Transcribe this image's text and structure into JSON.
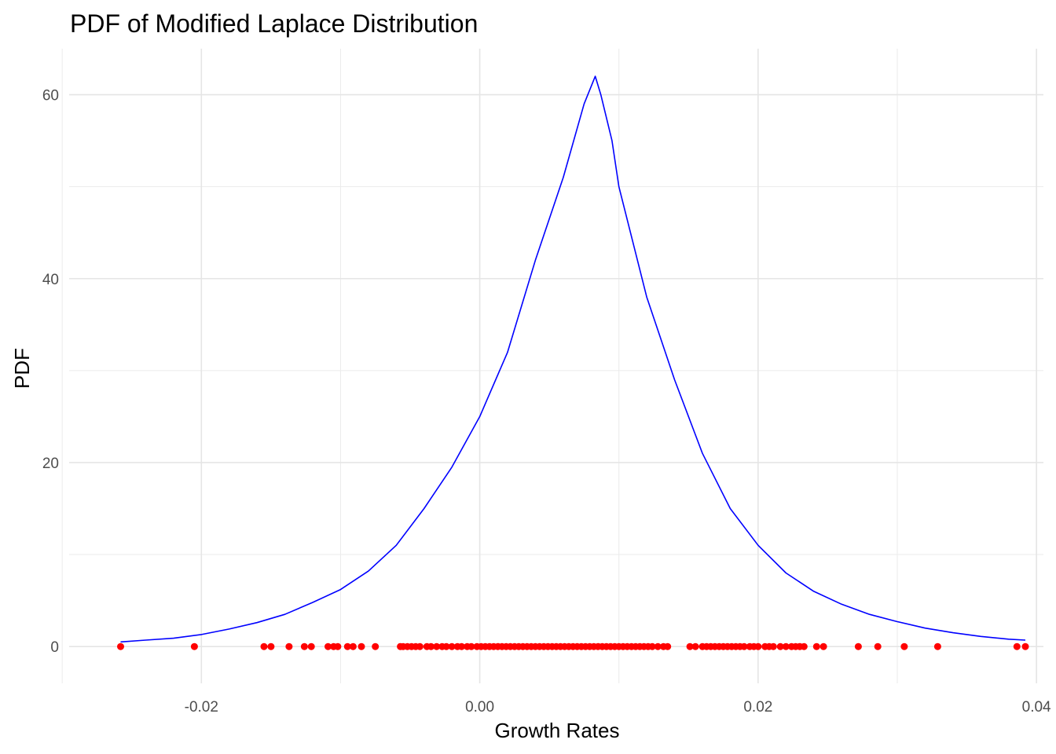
{
  "chart_data": {
    "type": "line",
    "title": "PDF of Modified Laplace Distribution",
    "xlabel": "Growth Rates",
    "ylabel": "PDF",
    "xlim": [
      -0.0295,
      0.0405
    ],
    "ylim": [
      -4,
      65
    ],
    "x_ticks": [
      -0.02,
      0.0,
      0.02,
      0.04
    ],
    "x_tick_labels": [
      "-0.02",
      "0.00",
      "0.02",
      "0.04"
    ],
    "x_minor_ticks": [
      -0.03,
      -0.01,
      0.01,
      0.03
    ],
    "y_ticks": [
      0,
      20,
      40,
      60
    ],
    "y_tick_labels": [
      "0",
      "20",
      "40",
      "60"
    ],
    "y_minor_ticks": [
      10,
      30,
      50
    ],
    "grid": true,
    "series": [
      {
        "type": "line",
        "color": "#0000ff",
        "x": [
          -0.0258,
          -0.024,
          -0.022,
          -0.02,
          -0.018,
          -0.016,
          -0.014,
          -0.012,
          -0.01,
          -0.008,
          -0.006,
          -0.004,
          -0.002,
          0.0,
          0.002,
          0.004,
          0.006,
          0.0075,
          0.0083,
          0.0087,
          0.0095,
          0.01,
          0.012,
          0.014,
          0.016,
          0.018,
          0.02,
          0.022,
          0.024,
          0.026,
          0.028,
          0.03,
          0.032,
          0.034,
          0.036,
          0.038,
          0.0392
        ],
        "y": [
          0.5,
          0.7,
          0.9,
          1.3,
          1.9,
          2.6,
          3.5,
          4.8,
          6.2,
          8.2,
          11.0,
          15.0,
          19.5,
          25.0,
          32.0,
          42.0,
          51.0,
          59.0,
          62.0,
          60.0,
          55.0,
          50.0,
          38.0,
          29.0,
          21.0,
          15.0,
          11.0,
          8.0,
          6.0,
          4.6,
          3.5,
          2.7,
          2.0,
          1.5,
          1.1,
          0.8,
          0.7
        ]
      },
      {
        "type": "scatter",
        "color": "#ff0000",
        "y_value": 0,
        "x": [
          -0.0258,
          -0.0205,
          -0.0155,
          -0.015,
          -0.0137,
          -0.0126,
          -0.0121,
          -0.0109,
          -0.0105,
          -0.0102,
          -0.0095,
          -0.0091,
          -0.0085,
          -0.0075,
          -0.0057,
          -0.0055,
          -0.0052,
          -0.0049,
          -0.0046,
          -0.0043,
          -0.0038,
          -0.0035,
          -0.0031,
          -0.0027,
          -0.0024,
          -0.002,
          -0.0016,
          -0.0013,
          -0.0009,
          -0.0006,
          -0.0002,
          0.0001,
          0.0004,
          0.0007,
          0.001,
          0.0013,
          0.0016,
          0.0019,
          0.0022,
          0.0025,
          0.0028,
          0.0031,
          0.0034,
          0.0037,
          0.004,
          0.0043,
          0.0046,
          0.0049,
          0.0052,
          0.0055,
          0.0058,
          0.0061,
          0.0064,
          0.0067,
          0.007,
          0.0073,
          0.0076,
          0.0079,
          0.0082,
          0.0085,
          0.0088,
          0.0091,
          0.0094,
          0.0097,
          0.01,
          0.0103,
          0.0106,
          0.0109,
          0.0112,
          0.0115,
          0.0118,
          0.0121,
          0.0124,
          0.0128,
          0.0132,
          0.0135,
          0.0151,
          0.0155,
          0.016,
          0.0163,
          0.0166,
          0.0169,
          0.0172,
          0.0175,
          0.0178,
          0.0181,
          0.0184,
          0.0187,
          0.019,
          0.0194,
          0.0197,
          0.02,
          0.0205,
          0.0208,
          0.0211,
          0.0216,
          0.022,
          0.0224,
          0.0227,
          0.023,
          0.0233,
          0.0242,
          0.0247,
          0.0272,
          0.0286,
          0.0305,
          0.0329,
          0.0386,
          0.0392
        ]
      }
    ]
  }
}
